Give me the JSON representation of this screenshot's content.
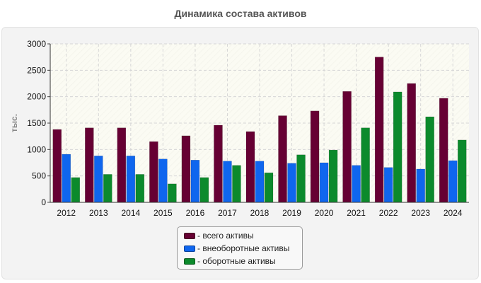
{
  "chart_data": {
    "type": "bar",
    "title": "Динамика состава активов",
    "ylabel": "тыс.",
    "xlabel": "",
    "ylim": [
      0,
      3000
    ],
    "yticks": [
      0,
      500,
      1000,
      1500,
      2000,
      2500,
      3000
    ],
    "grid": true,
    "legend_position": "bottom",
    "categories": [
      "2012",
      "2013",
      "2014",
      "2015",
      "2016",
      "2017",
      "2018",
      "2019",
      "2020",
      "2021",
      "2022",
      "2023",
      "2024"
    ],
    "series": [
      {
        "name": "- всего активы",
        "color": "#660033",
        "values": [
          1380,
          1410,
          1410,
          1150,
          1260,
          1460,
          1340,
          1640,
          1730,
          2100,
          2750,
          2250,
          1970
        ]
      },
      {
        "name": "- внеоборотные активы",
        "color": "#0f66ee",
        "values": [
          910,
          880,
          880,
          820,
          800,
          780,
          780,
          740,
          750,
          700,
          660,
          630,
          790
        ]
      },
      {
        "name": "- оборотные активы",
        "color": "#0c8a2c",
        "values": [
          470,
          530,
          530,
          350,
          470,
          700,
          560,
          900,
          990,
          1410,
          2090,
          1620,
          1180
        ]
      }
    ]
  }
}
